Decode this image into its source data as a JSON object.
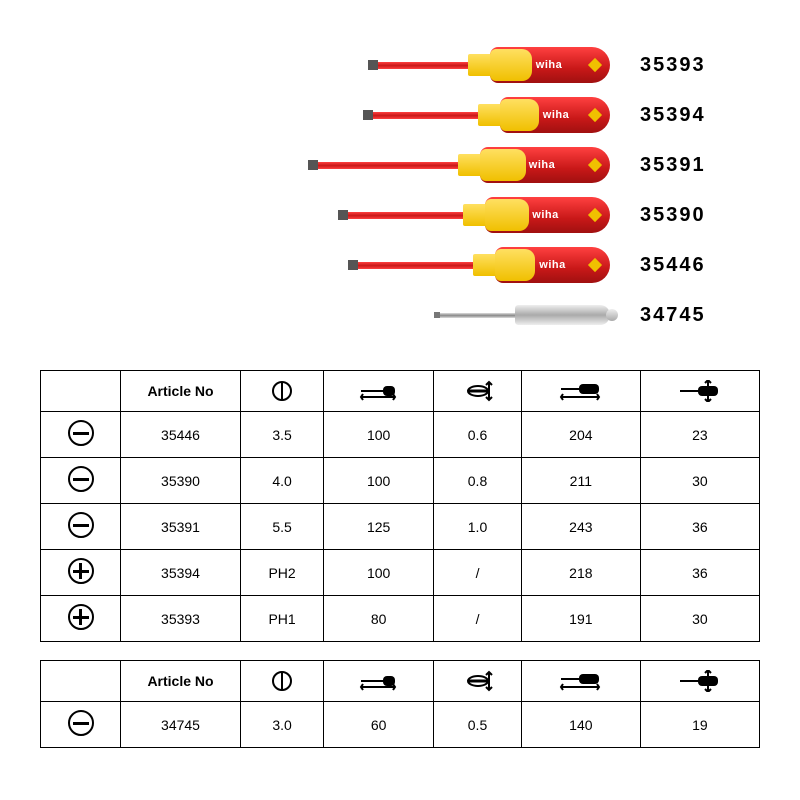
{
  "brand": "wiha",
  "colors": {
    "handle_red": "#c81818",
    "handle_yellow": "#f0c000",
    "shaft_red": "#d82020",
    "tester_grey": "#aaaaaa",
    "text": "#000000",
    "border": "#000000",
    "background": "#ffffff"
  },
  "products": [
    {
      "article": "35393",
      "tip": "phillips",
      "shaft_len": 90,
      "handle_len": 120,
      "type": "insulated"
    },
    {
      "article": "35394",
      "tip": "phillips",
      "shaft_len": 105,
      "handle_len": 110,
      "type": "insulated"
    },
    {
      "article": "35391",
      "tip": "slot",
      "shaft_len": 140,
      "handle_len": 130,
      "type": "insulated"
    },
    {
      "article": "35390",
      "tip": "slot",
      "shaft_len": 115,
      "handle_len": 125,
      "type": "insulated"
    },
    {
      "article": "35446",
      "tip": "slot",
      "shaft_len": 115,
      "handle_len": 115,
      "type": "insulated"
    },
    {
      "article": "34745",
      "tip": "slot",
      "shaft_len": 75,
      "handle_len": 95,
      "type": "tester"
    }
  ],
  "table_main": {
    "headers": [
      "",
      "Article No",
      "tip_dia",
      "blade_len",
      "tip_thick",
      "total_len",
      "handle_dia"
    ],
    "rows": [
      {
        "icon": "slot",
        "article": "35446",
        "c1": "3.5",
        "c2": "100",
        "c3": "0.6",
        "c4": "204",
        "c5": "23"
      },
      {
        "icon": "slot",
        "article": "35390",
        "c1": "4.0",
        "c2": "100",
        "c3": "0.8",
        "c4": "211",
        "c5": "30"
      },
      {
        "icon": "slot",
        "article": "35391",
        "c1": "5.5",
        "c2": "125",
        "c3": "1.0",
        "c4": "243",
        "c5": "36"
      },
      {
        "icon": "ph",
        "article": "35394",
        "c1": "PH2",
        "c2": "100",
        "c3": "/",
        "c4": "218",
        "c5": "36"
      },
      {
        "icon": "ph",
        "article": "35393",
        "c1": "PH1",
        "c2": "80",
        "c3": "/",
        "c4": "191",
        "c5": "30"
      }
    ]
  },
  "table_secondary": {
    "headers": [
      "",
      "Article No",
      "tip_dia",
      "blade_len",
      "tip_thick",
      "total_len",
      "handle_dia"
    ],
    "rows": [
      {
        "icon": "slot",
        "article": "34745",
        "c1": "3.0",
        "c2": "60",
        "c3": "0.5",
        "c4": "140",
        "c5": "19"
      }
    ]
  },
  "header_label_article": "Article No"
}
